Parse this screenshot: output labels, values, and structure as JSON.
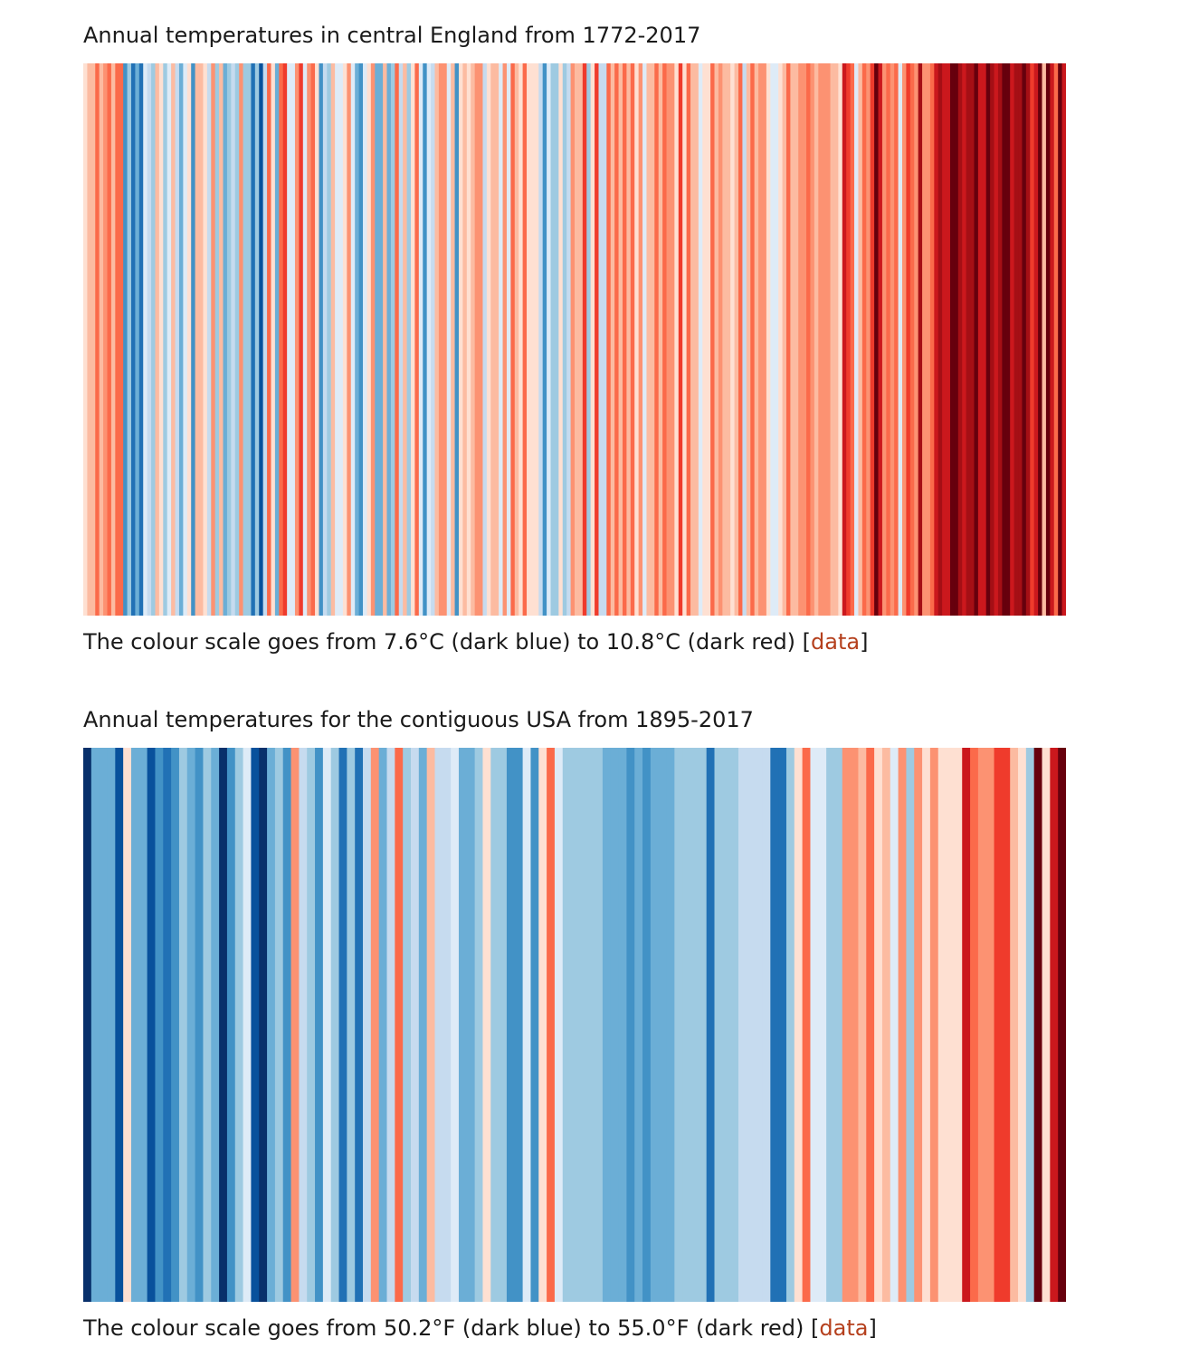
{
  "chart_data": [
    {
      "type": "heatmap",
      "title": "Annual temperatures in central England from 1772-2017",
      "caption": "The colour scale goes from 7.6°C (dark blue) to 10.8°C (dark red)",
      "caption_open": " [",
      "caption_close": "]",
      "link_label": "data",
      "x_start": 1772,
      "x_end": 2017,
      "value_unit": "°C",
      "color_min": 7.6,
      "color_max": 10.8,
      "values": [
        9.23,
        9.53,
        9.47,
        9.84,
        9.59,
        9.64,
        9.82,
        9.6,
        9.87,
        9.95,
        8.24,
        8.76,
        8.0,
        8.42,
        8.05,
        9.04,
        8.81,
        8.63,
        9.54,
        9.33,
        8.62,
        9.16,
        9.44,
        8.8,
        8.52,
        9.11,
        9.32,
        8.38,
        9.54,
        9.48,
        9.26,
        8.84,
        9.7,
        8.79,
        9.49,
        8.55,
        8.71,
        8.95,
        8.66,
        9.63,
        8.7,
        8.63,
        8.17,
        8.78,
        7.92,
        8.96,
        9.84,
        9.34,
        8.5,
        9.82,
        10.08,
        9.09,
        9.17,
        9.77,
        10.04,
        9.14,
        9.7,
        9.9,
        9.37,
        8.26,
        8.97,
        8.64,
        9.56,
        9.05,
        9.02,
        9.23,
        9.69,
        9.19,
        8.52,
        8.39,
        9.05,
        9.22,
        9.71,
        8.59,
        8.57,
        9.48,
        8.59,
        8.71,
        9.91,
        8.92,
        9.59,
        8.78,
        9.21,
        9.88,
        9.05,
        8.37,
        9.08,
        8.92,
        9.56,
        9.63,
        9.64,
        9.03,
        9.4,
        8.29,
        9.26,
        9.59,
        9.24,
        9.55,
        9.68,
        9.61,
        8.82,
        9.38,
        9.48,
        9.43,
        9.13,
        9.71,
        9.06,
        9.92,
        9.57,
        9.39,
        9.86,
        9.35,
        9.37,
        9.28,
        8.91,
        8.37,
        9.18,
        8.73,
        8.77,
        9.38,
        8.66,
        8.96,
        9.73,
        9.6,
        9.58,
        10.12,
        8.63,
        9.21,
        10.01,
        8.83,
        8.86,
        9.89,
        9.58,
        9.87,
        9.44,
        9.86,
        9.5,
        9.81,
        9.36,
        9.63,
        9.17,
        9.4,
        9.46,
        9.95,
        9.6,
        10.0,
        9.76,
        9.72,
        9.32,
        10.08,
        9.36,
        9.81,
        9.57,
        9.48,
        9.14,
        9.28,
        9.39,
        9.91,
        9.53,
        9.7,
        9.42,
        9.58,
        9.38,
        9.59,
        9.81,
        8.86,
        9.44,
        9.92,
        9.54,
        9.73,
        9.75,
        9.33,
        9.06,
        9.16,
        9.33,
        9.45,
        9.85,
        9.4,
        9.55,
        9.63,
        9.74,
        9.86,
        9.66,
        9.53,
        9.75,
        9.61,
        9.73,
        9.44,
        9.48,
        9.26,
        10.29,
        10.11,
        9.83,
        9.13,
        9.51,
        9.82,
        9.71,
        10.13,
        10.66,
        10.32,
        9.74,
        9.84,
        9.71,
        9.96,
        9.16,
        9.67,
        10.2,
        9.85,
        9.64,
        10.42,
        9.68,
        9.7,
        9.9,
        10.3,
        10.41,
        10.4,
        10.39,
        10.66,
        10.7,
        10.54,
        10.4,
        10.52,
        10.51,
        10.61,
        10.34,
        10.34,
        10.91,
        10.47,
        10.38,
        10.46,
        10.74,
        10.85,
        10.39,
        10.6,
        10.56,
        10.76,
        10.5,
        10.1,
        10.23,
        10.78,
        9.51,
        10.65,
        10.22,
        9.97,
        10.79,
        10.4
      ]
    },
    {
      "type": "heatmap",
      "title": "Annual temperatures for the contiguous USA from 1895-2017",
      "caption": "The colour scale goes from 50.2°F (dark blue) to 55.0°F (dark red)",
      "caption_open": " [",
      "caption_close": "]",
      "link_label": "data",
      "x_start": 1895,
      "x_end": 2017,
      "value_unit": "°F",
      "color_min": 50.2,
      "color_max": 55.0,
      "values": [
        50.4,
        51.6,
        51.6,
        51.6,
        50.8,
        52.7,
        51.5,
        51.6,
        50.7,
        51.2,
        50.9,
        51.3,
        51.8,
        51.6,
        51.4,
        52.0,
        51.6,
        50.4,
        51.4,
        51.8,
        52.5,
        50.6,
        50.4,
        51.6,
        51.7,
        51.3,
        53.3,
        52.3,
        51.9,
        51.4,
        52.5,
        51.8,
        51.1,
        51.8,
        51.0,
        52.2,
        53.4,
        51.6,
        52.1,
        53.8,
        51.9,
        52.1,
        51.6,
        53.0,
        52.1,
        52.1,
        52.4,
        51.5,
        51.6,
        51.8,
        52.6,
        52.0,
        51.7,
        51.4,
        51.3,
        52.4,
        51.2,
        52.6,
        53.6,
        52.5,
        51.9,
        51.8,
        51.8,
        51.7,
        51.9,
        51.6,
        51.5,
        51.6,
        51.4,
        51.5,
        51.3,
        51.6,
        51.6,
        51.6,
        51.8,
        51.9,
        51.9,
        51.9,
        50.9,
        51.8,
        51.9,
        51.9,
        52.1,
        52.1,
        52.1,
        52.2,
        51.1,
        51.1,
        51.8,
        52.6,
        53.7,
        52.4,
        52.4,
        51.9,
        51.9,
        53.5,
        53.5,
        53.1,
        53.7,
        52.6,
        53.1,
        52.5,
        53.2,
        51.7,
        53.4,
        52.9,
        53.4,
        52.6,
        52.8,
        52.8,
        54.3,
        53.8,
        53.2,
        53.2,
        53.9,
        54.0,
        53.1,
        52.8,
        51.8,
        54.8,
        52.9,
        54.2,
        55.0
      ]
    }
  ]
}
